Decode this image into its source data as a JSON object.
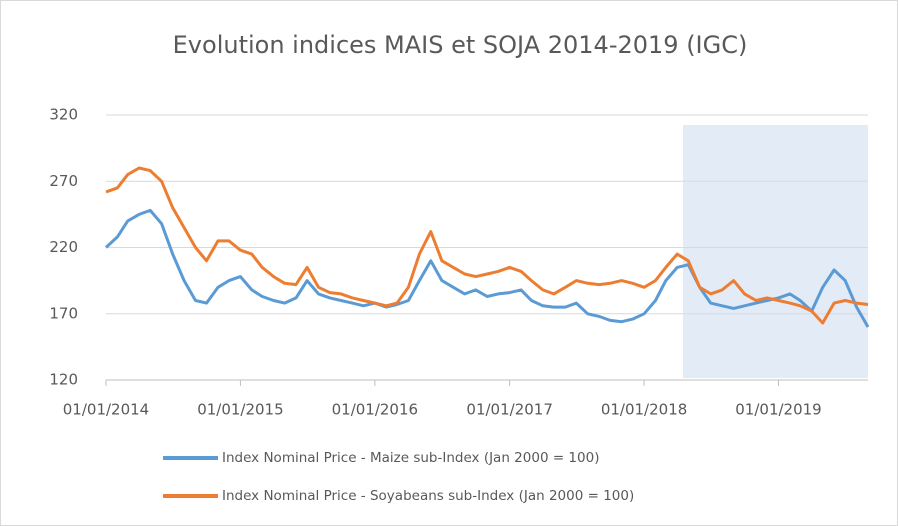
{
  "chart_data": {
    "type": "line",
    "title": "Evolution indices MAIS et SOJA 2014-2019 (IGC)",
    "x": [
      "01/01/2014",
      "01/02/2014",
      "01/03/2014",
      "01/04/2014",
      "01/05/2014",
      "01/06/2014",
      "01/07/2014",
      "01/08/2014",
      "01/09/2014",
      "01/10/2014",
      "01/11/2014",
      "01/12/2014",
      "01/01/2015",
      "01/02/2015",
      "01/03/2015",
      "01/04/2015",
      "01/05/2015",
      "01/06/2015",
      "01/07/2015",
      "01/08/2015",
      "01/09/2015",
      "01/10/2015",
      "01/11/2015",
      "01/12/2015",
      "01/01/2016",
      "01/02/2016",
      "01/03/2016",
      "01/04/2016",
      "01/05/2016",
      "01/06/2016",
      "01/07/2016",
      "01/08/2016",
      "01/09/2016",
      "01/10/2016",
      "01/11/2016",
      "01/12/2016",
      "01/01/2017",
      "01/02/2017",
      "01/03/2017",
      "01/04/2017",
      "01/05/2017",
      "01/06/2017",
      "01/07/2017",
      "01/08/2017",
      "01/09/2017",
      "01/10/2017",
      "01/11/2017",
      "01/12/2017",
      "01/01/2018",
      "01/02/2018",
      "01/03/2018",
      "01/04/2018",
      "01/05/2018",
      "01/06/2018",
      "01/07/2018",
      "01/08/2018",
      "01/09/2018",
      "01/10/2018",
      "01/11/2018",
      "01/12/2018",
      "01/01/2019",
      "01/02/2019",
      "01/03/2019",
      "01/04/2019",
      "01/05/2019",
      "01/06/2019",
      "01/07/2019",
      "01/08/2019",
      "01/09/2019"
    ],
    "series": [
      {
        "name": "Index Nominal Price - Maize sub-Index (Jan 2000 = 100)",
        "color": "#5b9bd5",
        "values": [
          220,
          228,
          240,
          245,
          248,
          238,
          215,
          195,
          180,
          178,
          190,
          195,
          198,
          188,
          183,
          180,
          178,
          182,
          195,
          185,
          182,
          180,
          178,
          176,
          178,
          175,
          177,
          180,
          195,
          210,
          195,
          190,
          185,
          188,
          183,
          185,
          186,
          188,
          180,
          176,
          175,
          175,
          178,
          170,
          168,
          165,
          164,
          166,
          170,
          180,
          195,
          205,
          207,
          190,
          178,
          176,
          174,
          176,
          178,
          180,
          182,
          185,
          180,
          172,
          190,
          203,
          195,
          175,
          160
        ]
      },
      {
        "name": "Index Nominal Price - Soyabeans sub-Index (Jan 2000 = 100)",
        "color": "#ed7d31",
        "values": [
          262,
          265,
          275,
          280,
          278,
          270,
          250,
          235,
          220,
          210,
          225,
          225,
          218,
          215,
          205,
          198,
          193,
          192,
          205,
          190,
          186,
          185,
          182,
          180,
          178,
          176,
          178,
          190,
          215,
          232,
          210,
          205,
          200,
          198,
          200,
          202,
          205,
          202,
          195,
          188,
          185,
          190,
          195,
          193,
          192,
          193,
          195,
          193,
          190,
          195,
          205,
          215,
          210,
          190,
          185,
          188,
          195,
          185,
          180,
          182,
          180,
          178,
          176,
          172,
          163,
          178,
          180,
          178,
          177
        ]
      }
    ],
    "xlim": [
      "01/01/2014",
      "01/09/2019"
    ],
    "xticks": [
      "01/01/2014",
      "01/01/2015",
      "01/01/2016",
      "01/01/2017",
      "01/01/2018",
      "01/01/2019"
    ],
    "ylim": [
      120,
      320
    ],
    "yticks": [
      120,
      170,
      220,
      270,
      320
    ],
    "grid": true,
    "legend": "bottom"
  }
}
